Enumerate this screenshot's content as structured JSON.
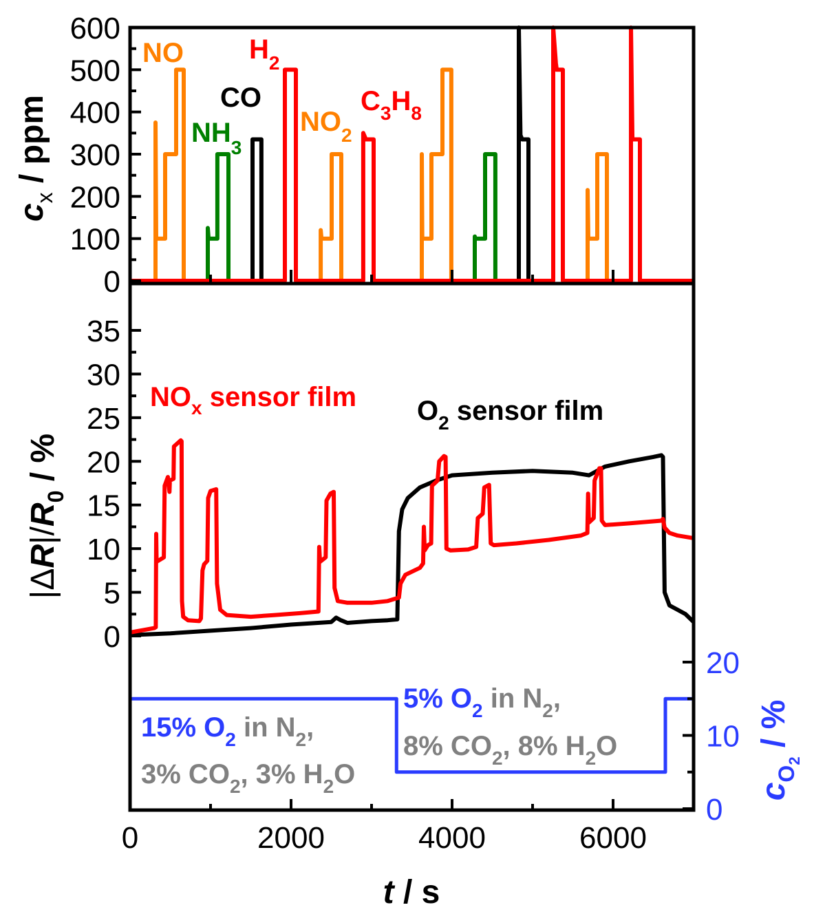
{
  "chart_data": [
    {
      "panel": "top",
      "type": "line",
      "ylabel": "c_x / ppm",
      "ylabel_parts": {
        "main": "c",
        "sub": "x",
        "rest": " / ppm"
      },
      "xlim": [
        0,
        7000
      ],
      "ylim": [
        0,
        600
      ],
      "yticks": [
        0,
        100,
        200,
        300,
        400,
        500,
        600
      ],
      "grid": false,
      "annotations": [
        {
          "id": "NO",
          "text": "NO",
          "sub": "",
          "color": "#ff8000"
        },
        {
          "id": "NH3",
          "text": "NH",
          "sub": "3",
          "color": "#008000"
        },
        {
          "id": "CO",
          "text": "CO",
          "sub": "",
          "color": "#000000"
        },
        {
          "id": "H2",
          "text": "H",
          "sub": "2",
          "color": "#ff0000"
        },
        {
          "id": "NO2",
          "text": "NO",
          "sub": "2",
          "color": "#ff8000"
        },
        {
          "id": "C3H8",
          "text": "C",
          "sub": "3",
          "text2": "H",
          "sub2": "8",
          "color": "#ff0000"
        }
      ],
      "series": [
        {
          "name": "NO",
          "color": "#ff8000",
          "points": [
            [
              316,
              0
            ],
            [
              316,
              375
            ],
            [
              325,
              100
            ],
            [
              436,
              100
            ],
            [
              436,
              300
            ],
            [
              573,
              300
            ],
            [
              573,
              500
            ],
            [
              667,
              500
            ],
            [
              667,
              0
            ]
          ]
        },
        {
          "name": "NO (repeat)",
          "color": "#ff8000",
          "points": [
            [
              3624,
              0
            ],
            [
              3624,
              300
            ],
            [
              3630,
              100
            ],
            [
              3744,
              100
            ],
            [
              3744,
              300
            ],
            [
              3880,
              300
            ],
            [
              3880,
              500
            ],
            [
              3991,
              500
            ],
            [
              3991,
              0
            ]
          ]
        },
        {
          "name": "NH3",
          "color": "#008000",
          "points": [
            [
              966,
              0
            ],
            [
              966,
              125
            ],
            [
              975,
              100
            ],
            [
              1085,
              100
            ],
            [
              1085,
              300
            ],
            [
              1222,
              300
            ],
            [
              1222,
              0
            ]
          ]
        },
        {
          "name": "NH3 (repeat)",
          "color": "#008000",
          "points": [
            [
              4282,
              0
            ],
            [
              4282,
              105
            ],
            [
              4290,
              100
            ],
            [
              4410,
              100
            ],
            [
              4410,
              300
            ],
            [
              4538,
              300
            ],
            [
              4538,
              0
            ]
          ]
        },
        {
          "name": "CO",
          "color": "#000000",
          "points": [
            [
              1521,
              0
            ],
            [
              1521,
              335
            ],
            [
              1632,
              335
            ],
            [
              1632,
              0
            ]
          ]
        },
        {
          "name": "CO (repeat)",
          "color": "#000000",
          "points": [
            [
              4829,
              0
            ],
            [
              4829,
              600
            ],
            [
              4850,
              345
            ],
            [
              4870,
              335
            ],
            [
              4949,
              335
            ],
            [
              4949,
              0
            ]
          ]
        },
        {
          "name": "NO2",
          "color": "#ff8000",
          "points": [
            [
              2368,
              0
            ],
            [
              2368,
              120
            ],
            [
              2378,
              100
            ],
            [
              2504,
              100
            ],
            [
              2504,
              300
            ],
            [
              2624,
              300
            ],
            [
              2624,
              0
            ]
          ]
        },
        {
          "name": "NO2 (repeat)",
          "color": "#ff8000",
          "points": [
            [
              5684,
              0
            ],
            [
              5684,
              215
            ],
            [
              5692,
              100
            ],
            [
              5803,
              100
            ],
            [
              5803,
              300
            ],
            [
              5923,
              300
            ],
            [
              5923,
              0
            ]
          ]
        },
        {
          "name": "H2 / C3H8 baseline",
          "color": "#ff0000",
          "points": [
            [
              0,
              0
            ],
            [
              1923,
              0
            ],
            [
              1923,
              500
            ],
            [
              2060,
              500
            ],
            [
              2060,
              0
            ],
            [
              2897,
              0
            ],
            [
              2897,
              350
            ],
            [
              2930,
              335
            ],
            [
              3026,
              335
            ],
            [
              3026,
              0
            ],
            [
              5256,
              0
            ],
            [
              5256,
              600
            ],
            [
              5290,
              515
            ],
            [
              5300,
              500
            ],
            [
              5376,
              500
            ],
            [
              5376,
              0
            ],
            [
              6222,
              0
            ],
            [
              6222,
              600
            ],
            [
              6240,
              335
            ],
            [
              6333,
              335
            ],
            [
              6333,
              0
            ],
            [
              7000,
              0
            ]
          ]
        }
      ]
    },
    {
      "panel": "bottom",
      "type": "line",
      "ylabel": "|ΔR|/R0 / %",
      "ylabel_parts": {
        "pre": "|Δ",
        "R": "R",
        "mid": "|/",
        "R2": "R",
        "sub": "0",
        "rest": " / %"
      },
      "xlabel": "t / s",
      "xlabel_parts": {
        "t": "t",
        "rest": " / s"
      },
      "xlim": [
        0,
        7000
      ],
      "xticks": [
        0,
        2000,
        4000,
        6000
      ],
      "ylim": [
        0,
        35
      ],
      "yticks": [
        0,
        5,
        10,
        15,
        20,
        25,
        30,
        35
      ],
      "grid": false,
      "annotations": [
        {
          "id": "nox-film",
          "text": "NO",
          "sub": "x",
          "rest": " sensor film",
          "color": "#ff0000"
        },
        {
          "id": "o2-film",
          "text": "O",
          "sub": "2",
          "rest": " sensor film",
          "color": "#000000"
        }
      ],
      "series": [
        {
          "name": "NOx sensor film",
          "color": "#ff0000",
          "points": [
            [
              0,
              0.4
            ],
            [
              300,
              0.9
            ],
            [
              320,
              1.0
            ],
            [
              325,
              11.7
            ],
            [
              330,
              8.5
            ],
            [
              420,
              9.0
            ],
            [
              430,
              17.2
            ],
            [
              470,
              18.2
            ],
            [
              490,
              16.5
            ],
            [
              495,
              17.8
            ],
            [
              540,
              18.0
            ],
            [
              545,
              21.7
            ],
            [
              630,
              22.4
            ],
            [
              640,
              22.3
            ],
            [
              645,
              4.0
            ],
            [
              660,
              2.2
            ],
            [
              720,
              1.8
            ],
            [
              860,
              1.7
            ],
            [
              880,
              2.0
            ],
            [
              900,
              7.5
            ],
            [
              920,
              8.2
            ],
            [
              960,
              8.6
            ],
            [
              970,
              15.8
            ],
            [
              1000,
              16.6
            ],
            [
              1070,
              16.8
            ],
            [
              1080,
              6.0
            ],
            [
              1120,
              3.0
            ],
            [
              1200,
              2.4
            ],
            [
              1500,
              2.2
            ],
            [
              1800,
              2.4
            ],
            [
              2100,
              2.6
            ],
            [
              2340,
              2.8
            ],
            [
              2350,
              10.2
            ],
            [
              2360,
              8.5
            ],
            [
              2430,
              9.0
            ],
            [
              2440,
              15.5
            ],
            [
              2490,
              16.3
            ],
            [
              2530,
              16.5
            ],
            [
              2540,
              5.5
            ],
            [
              2580,
              4.0
            ],
            [
              2700,
              3.8
            ],
            [
              3000,
              3.8
            ],
            [
              3200,
              4.0
            ],
            [
              3340,
              4.4
            ],
            [
              3360,
              6.0
            ],
            [
              3420,
              7.0
            ],
            [
              3600,
              7.8
            ],
            [
              3640,
              8.3
            ],
            [
              3650,
              12.5
            ],
            [
              3660,
              9.8
            ],
            [
              3700,
              10.4
            ],
            [
              3740,
              10.6
            ],
            [
              3750,
              17.2
            ],
            [
              3820,
              17.8
            ],
            [
              3840,
              20.0
            ],
            [
              3900,
              20.6
            ],
            [
              3920,
              20.5
            ],
            [
              3930,
              10.0
            ],
            [
              3980,
              9.8
            ],
            [
              4200,
              9.9
            ],
            [
              4300,
              10.2
            ],
            [
              4320,
              13.5
            ],
            [
              4380,
              14.0
            ],
            [
              4400,
              17.0
            ],
            [
              4460,
              17.3
            ],
            [
              4480,
              10.6
            ],
            [
              4520,
              10.4
            ],
            [
              4800,
              10.6
            ],
            [
              5200,
              11.0
            ],
            [
              5600,
              11.5
            ],
            [
              5680,
              11.8
            ],
            [
              5690,
              16.3
            ],
            [
              5700,
              13.0
            ],
            [
              5760,
              13.5
            ],
            [
              5770,
              17.8
            ],
            [
              5830,
              19.2
            ],
            [
              5850,
              19.2
            ],
            [
              5860,
              13.2
            ],
            [
              5900,
              12.7
            ],
            [
              6200,
              12.9
            ],
            [
              6600,
              13.2
            ],
            [
              6620,
              13.4
            ],
            [
              6640,
              12.4
            ],
            [
              6700,
              11.8
            ],
            [
              6800,
              11.5
            ],
            [
              7000,
              11.2
            ]
          ]
        },
        {
          "name": "O2 sensor film",
          "color": "#000000",
          "points": [
            [
              0,
              0.1
            ],
            [
              500,
              0.3
            ],
            [
              1000,
              0.6
            ],
            [
              1500,
              0.9
            ],
            [
              2000,
              1.3
            ],
            [
              2500,
              1.6
            ],
            [
              2560,
              2.1
            ],
            [
              2620,
              1.8
            ],
            [
              2700,
              1.5
            ],
            [
              3000,
              1.7
            ],
            [
              3200,
              1.8
            ],
            [
              3320,
              1.9
            ],
            [
              3340,
              12.0
            ],
            [
              3380,
              14.5
            ],
            [
              3450,
              15.8
            ],
            [
              3600,
              17.0
            ],
            [
              3800,
              17.8
            ],
            [
              4000,
              18.4
            ],
            [
              4500,
              18.7
            ],
            [
              5000,
              18.9
            ],
            [
              5500,
              18.7
            ],
            [
              5700,
              18.4
            ],
            [
              5900,
              19.4
            ],
            [
              6200,
              20.0
            ],
            [
              6500,
              20.5
            ],
            [
              6600,
              20.7
            ],
            [
              6620,
              20.5
            ],
            [
              6640,
              5.0
            ],
            [
              6700,
              3.5
            ],
            [
              6800,
              3.0
            ],
            [
              6900,
              2.5
            ],
            [
              7000,
              1.6
            ]
          ]
        }
      ]
    },
    {
      "panel": "bottom-right",
      "type": "line",
      "ylabel": "c_O2 / %",
      "ylabel_parts": {
        "main": "c",
        "sub": "O",
        "subsub": "2",
        "rest": " / %"
      },
      "ylim": [
        0,
        20
      ],
      "yticks": [
        0,
        10,
        20
      ],
      "color": "#2a3cff",
      "annotations": [
        {
          "id": "phase1-line1",
          "o2": "15% O",
          "o2sub": "2",
          "gas": " in N",
          "gassub": "2",
          "tail": ","
        },
        {
          "id": "phase1-line2",
          "co2": "3% CO",
          "co2sub": "2",
          "mid": ", 3% H",
          "h2osub": "2",
          "tail": "O"
        },
        {
          "id": "phase2-line1",
          "o2": "5% O",
          "o2sub": "2",
          "gas": " in N",
          "gassub": "2",
          "tail": ","
        },
        {
          "id": "phase2-line2",
          "co2": "8% CO",
          "co2sub": "2",
          "mid": ", 8% H",
          "h2osub": "2",
          "tail": "O"
        }
      ],
      "series": [
        {
          "name": "O2 concentration",
          "color": "#2a3cff",
          "points": [
            [
              0,
              15
            ],
            [
              3310,
              15
            ],
            [
              3310,
              5
            ],
            [
              6650,
              5
            ],
            [
              6650,
              15
            ],
            [
              7000,
              15
            ]
          ]
        }
      ]
    }
  ]
}
